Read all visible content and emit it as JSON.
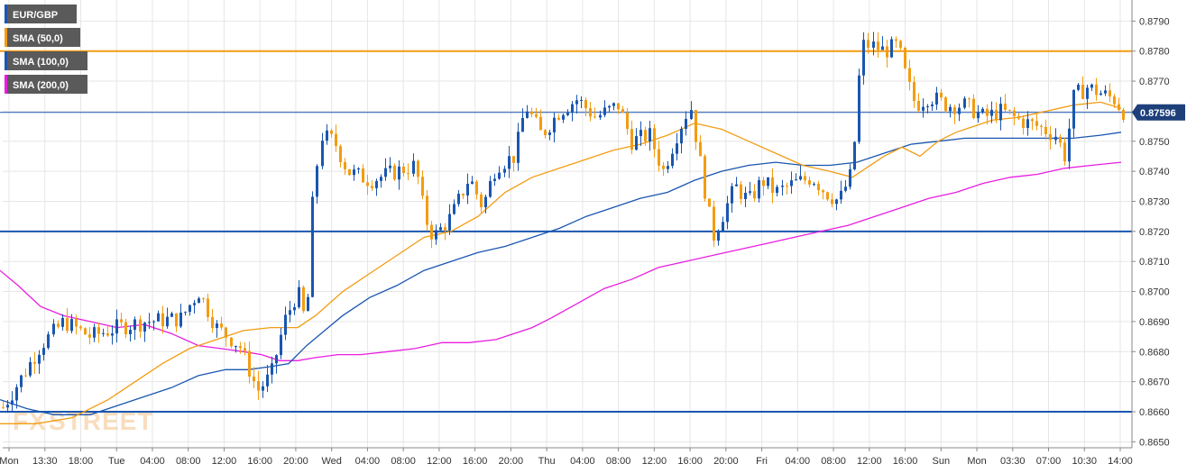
{
  "chart_data": {
    "type": "candlestick",
    "symbol": "EUR/GBP",
    "legend": [
      {
        "label": "EUR/GBP",
        "color": "#1a56b0"
      },
      {
        "label": "SMA (50,0)",
        "color": "#f39c12"
      },
      {
        "label": "SMA (100,0)",
        "color": "#1a56b0"
      },
      {
        "label": "SMA (200,0)",
        "color": "#e91ee0"
      }
    ],
    "y_axis": {
      "ylim": [
        0.8648,
        0.8797
      ],
      "ticks": [
        "0.8650",
        "0.8660",
        "0.8670",
        "0.8680",
        "0.8690",
        "0.8700",
        "0.8710",
        "0.8720",
        "0.8730",
        "0.8740",
        "0.8750",
        "0.8760",
        "0.8770",
        "0.8780",
        "0.8790"
      ],
      "side": "right"
    },
    "x_axis": {
      "ticks": [
        "Mon",
        "13:30",
        "18:00",
        "Tue",
        "04:00",
        "08:00",
        "12:00",
        "16:00",
        "20:00",
        "Wed",
        "04:00",
        "08:00",
        "12:00",
        "16:00",
        "20:00",
        "Thu",
        "04:00",
        "08:00",
        "12:00",
        "16:00",
        "20:00",
        "Fri",
        "04:00",
        "08:00",
        "12:00",
        "16:00",
        "Sun",
        "Mon",
        "03:30",
        "07:00",
        "10:30",
        "14:00"
      ]
    },
    "current_price": {
      "value": 0.87596,
      "label": "0.87596"
    },
    "horizontal_levels": [
      {
        "value": 0.878,
        "color": "#f39c12"
      },
      {
        "value": 0.872,
        "color": "#1a56b0"
      },
      {
        "value": 0.866,
        "color": "#1a56b0"
      }
    ],
    "colors": {
      "up": "#1a56b0",
      "down": "#f39c12",
      "sma50": "#f39c12",
      "sma100": "#1a56b0",
      "sma200": "#e91ee0",
      "grid": "#e6e6e6",
      "axis": "#888888"
    },
    "sma200": [
      [
        0,
        0.8707
      ],
      [
        20,
        0.8702
      ],
      [
        45,
        0.8695
      ],
      [
        70,
        0.8692
      ],
      [
        100,
        0.869
      ],
      [
        130,
        0.8688
      ],
      [
        160,
        0.8689
      ],
      [
        190,
        0.8686
      ],
      [
        220,
        0.8682
      ],
      [
        245,
        0.8681
      ],
      [
        270,
        0.868
      ],
      [
        290,
        0.8679
      ],
      [
        310,
        0.8677
      ],
      [
        330,
        0.8677
      ],
      [
        350,
        0.8678
      ],
      [
        375,
        0.8679
      ],
      [
        400,
        0.8679
      ],
      [
        430,
        0.868
      ],
      [
        460,
        0.8681
      ],
      [
        490,
        0.8683
      ],
      [
        520,
        0.8683
      ],
      [
        550,
        0.8684
      ],
      [
        570,
        0.8686
      ],
      [
        590,
        0.8688
      ],
      [
        610,
        0.8691
      ],
      [
        640,
        0.8696
      ],
      [
        670,
        0.8701
      ],
      [
        700,
        0.8704
      ],
      [
        730,
        0.8708
      ],
      [
        760,
        0.871
      ],
      [
        790,
        0.8712
      ],
      [
        820,
        0.8714
      ],
      [
        850,
        0.8716
      ],
      [
        880,
        0.8718
      ],
      [
        910,
        0.872
      ],
      [
        940,
        0.8722
      ],
      [
        970,
        0.8725
      ],
      [
        1000,
        0.8728
      ],
      [
        1030,
        0.8731
      ],
      [
        1060,
        0.8733
      ],
      [
        1090,
        0.8736
      ],
      [
        1120,
        0.8738
      ],
      [
        1150,
        0.8739
      ],
      [
        1180,
        0.8741
      ],
      [
        1210,
        0.8742
      ],
      [
        1243,
        0.8743
      ]
    ],
    "sma100": [
      [
        0,
        0.8664
      ],
      [
        30,
        0.8661
      ],
      [
        60,
        0.8659
      ],
      [
        100,
        0.8659
      ],
      [
        130,
        0.8662
      ],
      [
        160,
        0.8665
      ],
      [
        190,
        0.8668
      ],
      [
        220,
        0.8672
      ],
      [
        250,
        0.8674
      ],
      [
        275,
        0.8674
      ],
      [
        300,
        0.8675
      ],
      [
        320,
        0.8676
      ],
      [
        340,
        0.8682
      ],
      [
        360,
        0.8687
      ],
      [
        380,
        0.8692
      ],
      [
        410,
        0.8698
      ],
      [
        440,
        0.8702
      ],
      [
        470,
        0.8707
      ],
      [
        500,
        0.871
      ],
      [
        530,
        0.8713
      ],
      [
        560,
        0.8715
      ],
      [
        590,
        0.8718
      ],
      [
        620,
        0.8721
      ],
      [
        650,
        0.8725
      ],
      [
        680,
        0.8728
      ],
      [
        710,
        0.8731
      ],
      [
        740,
        0.8733
      ],
      [
        770,
        0.8737
      ],
      [
        800,
        0.874
      ],
      [
        830,
        0.8742
      ],
      [
        860,
        0.8743
      ],
      [
        890,
        0.8742
      ],
      [
        920,
        0.8742
      ],
      [
        950,
        0.8743
      ],
      [
        980,
        0.8746
      ],
      [
        1010,
        0.8749
      ],
      [
        1040,
        0.875
      ],
      [
        1070,
        0.8751
      ],
      [
        1100,
        0.8751
      ],
      [
        1130,
        0.8751
      ],
      [
        1160,
        0.8751
      ],
      [
        1190,
        0.8751
      ],
      [
        1220,
        0.8752
      ],
      [
        1243,
        0.8753
      ]
    ],
    "sma50": [
      [
        0,
        0.8656
      ],
      [
        40,
        0.8656
      ],
      [
        80,
        0.8658
      ],
      [
        120,
        0.8664
      ],
      [
        150,
        0.867
      ],
      [
        180,
        0.8676
      ],
      [
        210,
        0.8681
      ],
      [
        240,
        0.8684
      ],
      [
        270,
        0.8687
      ],
      [
        300,
        0.8688
      ],
      [
        330,
        0.8688
      ],
      [
        350,
        0.8692
      ],
      [
        380,
        0.87
      ],
      [
        410,
        0.8706
      ],
      [
        440,
        0.8712
      ],
      [
        470,
        0.8718
      ],
      [
        500,
        0.872
      ],
      [
        530,
        0.8725
      ],
      [
        560,
        0.8733
      ],
      [
        590,
        0.8738
      ],
      [
        620,
        0.8741
      ],
      [
        650,
        0.8744
      ],
      [
        680,
        0.8747
      ],
      [
        710,
        0.8749
      ],
      [
        740,
        0.8752
      ],
      [
        770,
        0.8756
      ],
      [
        800,
        0.8754
      ],
      [
        830,
        0.875
      ],
      [
        860,
        0.8746
      ],
      [
        890,
        0.8742
      ],
      [
        920,
        0.874
      ],
      [
        945,
        0.8738
      ],
      [
        960,
        0.8741
      ],
      [
        980,
        0.8745
      ],
      [
        1000,
        0.8748
      ],
      [
        1020,
        0.8745
      ],
      [
        1040,
        0.875
      ],
      [
        1060,
        0.8753
      ],
      [
        1080,
        0.8755
      ],
      [
        1100,
        0.8757
      ],
      [
        1130,
        0.8758
      ],
      [
        1160,
        0.876
      ],
      [
        1190,
        0.8762
      ],
      [
        1220,
        0.8763
      ],
      [
        1243,
        0.8761
      ]
    ],
    "candle_path": [
      [
        0,
        0.866
      ],
      [
        25,
        0.8672
      ],
      [
        45,
        0.8682
      ],
      [
        70,
        0.869
      ],
      [
        100,
        0.8685
      ],
      [
        130,
        0.8688
      ],
      [
        160,
        0.869
      ],
      [
        200,
        0.8691
      ],
      [
        220,
        0.87
      ],
      [
        240,
        0.8688
      ],
      [
        265,
        0.8682
      ],
      [
        285,
        0.8667
      ],
      [
        300,
        0.8672
      ],
      [
        315,
        0.869
      ],
      [
        330,
        0.87
      ],
      [
        340,
        0.8688
      ],
      [
        345,
        0.8725
      ],
      [
        355,
        0.8752
      ],
      [
        370,
        0.875
      ],
      [
        385,
        0.874
      ],
      [
        410,
        0.8737
      ],
      [
        440,
        0.874
      ],
      [
        460,
        0.8742
      ],
      [
        470,
        0.8725
      ],
      [
        480,
        0.8718
      ],
      [
        500,
        0.8725
      ],
      [
        520,
        0.8738
      ],
      [
        535,
        0.8728
      ],
      [
        550,
        0.8742
      ],
      [
        570,
        0.8745
      ],
      [
        582,
        0.8762
      ],
      [
        600,
        0.8752
      ],
      [
        620,
        0.876
      ],
      [
        640,
        0.8764
      ],
      [
        660,
        0.8758
      ],
      [
        685,
        0.8762
      ],
      [
        700,
        0.875
      ],
      [
        720,
        0.8752
      ],
      [
        735,
        0.874
      ],
      [
        750,
        0.8752
      ],
      [
        765,
        0.8762
      ],
      [
        780,
        0.8735
      ],
      [
        790,
        0.8718
      ],
      [
        800,
        0.8725
      ],
      [
        815,
        0.8735
      ],
      [
        830,
        0.873
      ],
      [
        845,
        0.8737
      ],
      [
        860,
        0.8733
      ],
      [
        880,
        0.8736
      ],
      [
        900,
        0.8738
      ],
      [
        915,
        0.8733
      ],
      [
        930,
        0.873
      ],
      [
        945,
        0.874
      ],
      [
        955,
        0.8782
      ],
      [
        965,
        0.8782
      ],
      [
        980,
        0.878
      ],
      [
        995,
        0.8782
      ],
      [
        1005,
        0.877
      ],
      [
        1015,
        0.8762
      ],
      [
        1030,
        0.8765
      ],
      [
        1050,
        0.8762
      ],
      [
        1070,
        0.8762
      ],
      [
        1090,
        0.8758
      ],
      [
        1110,
        0.876
      ],
      [
        1130,
        0.8757
      ],
      [
        1150,
        0.8755
      ],
      [
        1170,
        0.8752
      ],
      [
        1180,
        0.8745
      ],
      [
        1190,
        0.8765
      ],
      [
        1205,
        0.8768
      ],
      [
        1220,
        0.8766
      ],
      [
        1235,
        0.8764
      ],
      [
        1245,
        0.876
      ]
    ]
  },
  "watermark": {
    "text_a": "FX",
    "text_b": "STREET",
    "color": "#f3c28a"
  }
}
